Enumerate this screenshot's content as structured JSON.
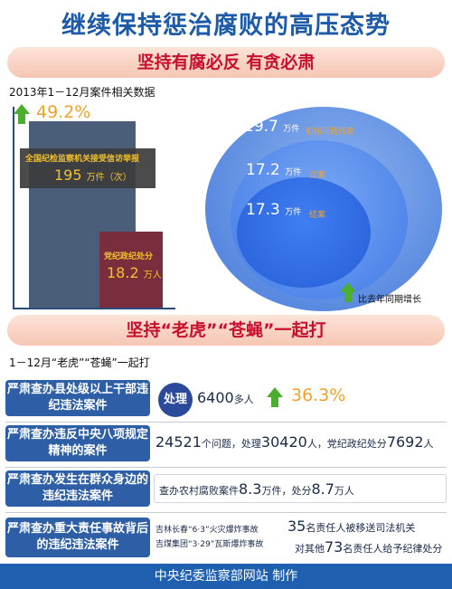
{
  "title": "继续保持惩治腐败的高压态势",
  "banner1": "坚持有腐必反 有贪必肃",
  "section1_note": "2013年1－12月案件相关数据",
  "chart_data": [
    {
      "type": "bar",
      "bars": [
        {
          "label": "全国纪检监察机关接受信访举报",
          "value": 195,
          "unit": "万件（次）",
          "display": "195",
          "growth": "49.2%"
        },
        {
          "label": "党纪政纪处分",
          "value": 18.2,
          "unit": "万人",
          "display": "18.2"
        }
      ]
    },
    {
      "type": "bubble",
      "items": [
        {
          "label": "初核问题线索",
          "value": 19.7,
          "unit": "万件",
          "display": "19.7"
        },
        {
          "label": "立案",
          "value": 17.2,
          "unit": "万件",
          "display": "17.2"
        },
        {
          "label": "结案",
          "value": 17.3,
          "unit": "万件",
          "display": "17.3"
        }
      ],
      "legend": "比去年同期增长"
    }
  ],
  "banner2": "坚持“老虎”“苍蝇”一起打",
  "section2_note": "1－12月“老虎”“苍蝇”一起打",
  "rows": [
    {
      "label": "严肃查办县处级以上干部违纪违法案件",
      "badge": "处理",
      "value": "6400",
      "suffix": "多人",
      "growth": "36.3%"
    },
    {
      "label": "严肃查办违反中央八项规定精神的案件",
      "v1": "24521",
      "t1": "个问题，处理",
      "v2": "30420",
      "t2": "人，党纪政纪处分",
      "v3": "7692",
      "t3": "人"
    },
    {
      "label": "严肃查办发生在群众身边的违纪违法案件",
      "t1": "查办农村腐败案件",
      "v1": "8.3",
      "t2": "万件，处分",
      "v2": "8.7",
      "t3": "万人"
    },
    {
      "label": "严肃查办重大责任事故背后的违纪违法案件",
      "case1": "吉林长春“6·3”火灾爆炸事故",
      "case2": "吉煤集团“3·29”瓦斯爆炸事故",
      "v1": "35",
      "t1": "名责任人被移送司法机关",
      "t2": "对其他",
      "v2": "73",
      "t3": "名责任人给予纪律处分"
    }
  ],
  "footer": "中央纪委监察部网站 制作",
  "colors": {
    "title": "#1d5aa8",
    "banner_text": "#c8102e",
    "growth": "#f2a12b",
    "label_bg": "#2e5fa6"
  }
}
